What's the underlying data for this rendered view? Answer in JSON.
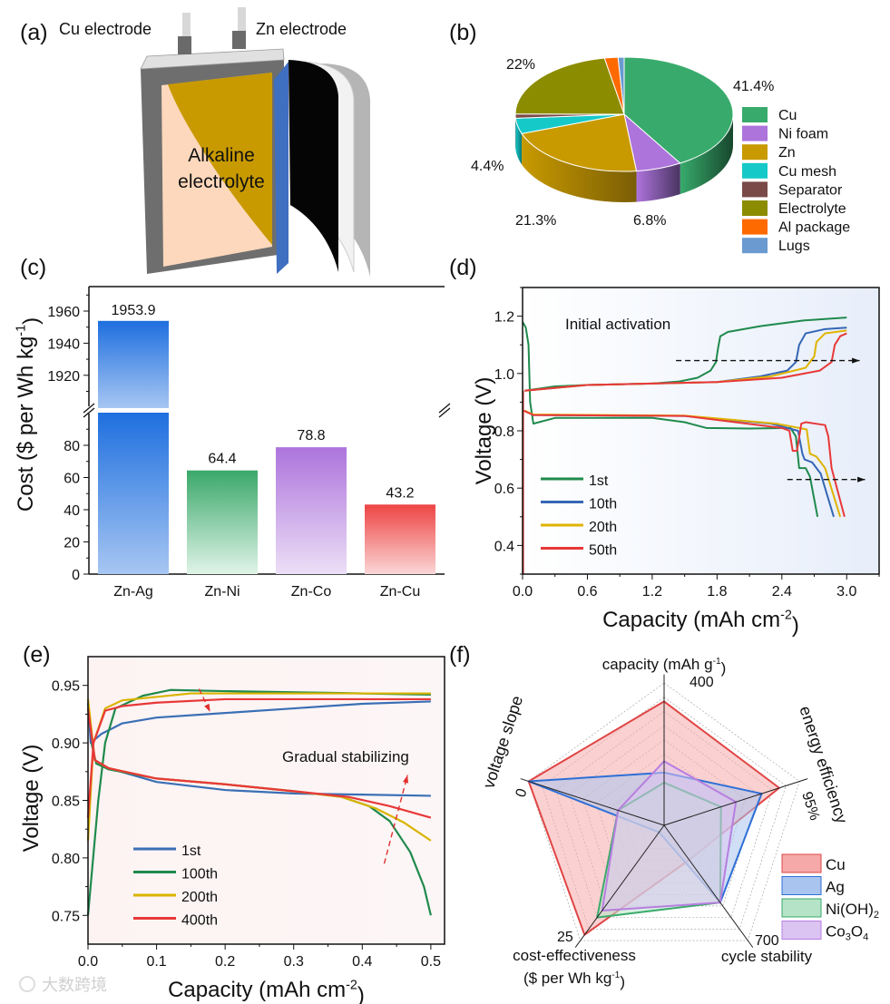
{
  "panels": {
    "a": "(a)",
    "b": "(b)",
    "c": "(c)",
    "d": "(d)",
    "e": "(e)",
    "f": "(f)"
  },
  "watermark": "大数跨境",
  "panel_a": {
    "cu_label": "Cu electrode",
    "zn_label": "Zn electrode",
    "electrolyte_line1": "Alkaline",
    "electrolyte_line2": "electrolyte",
    "colors": {
      "zn": "#c89a00",
      "cu": "#fdd8bc",
      "separator": "#3f6fc0",
      "frame": "#6a6a6a"
    }
  },
  "chart_data": [
    {
      "id": "b",
      "type": "pie",
      "slices": [
        {
          "name": "Cu",
          "value": 41.4,
          "label": "41.4%",
          "color": "#38ab6c",
          "dark": "#17472d"
        },
        {
          "name": "Ni foam",
          "value": 6.8,
          "label": "6.8%",
          "color": "#ad74dc",
          "dark": "#4a3462"
        },
        {
          "name": "Zn",
          "value": 21.3,
          "label": "21.3%",
          "color": "#c89a00",
          "dark": "#7a5e05"
        },
        {
          "name": "Cu mesh",
          "value": 4.4,
          "label": "4.4%",
          "color": "#16c9c9",
          "dark": "#0a7777"
        },
        {
          "name": "Separator",
          "value": 1.2,
          "label": "",
          "color": "#7a4a48",
          "dark": "#3f2322"
        },
        {
          "name": "Electrolyte",
          "value": 22.0,
          "label": "22%",
          "color": "#8c8c00",
          "dark": "#4f4f00"
        },
        {
          "name": "Al package",
          "value": 2.0,
          "label": "",
          "color": "#ff6a00",
          "dark": "#8a3900"
        },
        {
          "name": "Lugs",
          "value": 0.9,
          "label": "",
          "color": "#6a9ad0",
          "dark": "#3a5a80"
        }
      ],
      "legend_position": "right"
    },
    {
      "id": "c",
      "type": "bar",
      "categories": [
        "Zn-Ag",
        "Zn-Ni",
        "Zn-Co",
        "Zn-Cu"
      ],
      "values": [
        1953.9,
        64.4,
        78.8,
        43.2
      ],
      "value_labels": [
        "1953.9",
        "64.4",
        "78.8",
        "43.2"
      ],
      "colors": [
        [
          "#1e6fdf",
          "#a7c6f2"
        ],
        [
          "#3aa86a",
          "#e0f4e8"
        ],
        [
          "#ad74dc",
          "#ecdff6"
        ],
        [
          "#ee4444",
          "#fbd6d6"
        ]
      ],
      "ylabel": "Cost ($ per Wh kg",
      "ylabel_sup": "-1",
      "ylabel_tail": ")",
      "ylim_lower": [
        0,
        100
      ],
      "ylim_upper": [
        1900,
        1970
      ],
      "yticks_lower": [
        "0",
        "20",
        "40",
        "60",
        "80"
      ],
      "yticks_upper": [
        "1920",
        "1940",
        "1960"
      ],
      "axis_break": true
    },
    {
      "id": "d",
      "type": "line",
      "xlabel": "Capacity (mAh cm",
      "xlabel_sup": "-2",
      "xlabel_tail": ")",
      "ylabel": "Voltage (V)",
      "xlim": [
        0,
        3.3
      ],
      "ylim": [
        0.3,
        1.3
      ],
      "xticks": [
        "0.0",
        "0.6",
        "1.2",
        "1.8",
        "2.4",
        "3.0"
      ],
      "yticks": [
        "0.4",
        "0.6",
        "0.8",
        "1.0",
        "1.2"
      ],
      "annotation": "Initial activation",
      "series": [
        {
          "name": "1st",
          "color": "#1f8a4c",
          "charge": [
            [
              0.02,
              0.94
            ],
            [
              0.3,
              0.955
            ],
            [
              0.6,
              0.96
            ],
            [
              1.2,
              0.965
            ],
            [
              1.45,
              0.972
            ],
            [
              1.62,
              0.985
            ],
            [
              1.74,
              1.01
            ],
            [
              1.79,
              1.04
            ],
            [
              1.81,
              1.09
            ],
            [
              1.83,
              1.13
            ],
            [
              1.9,
              1.145
            ],
            [
              2.2,
              1.165
            ],
            [
              2.6,
              1.185
            ],
            [
              3.0,
              1.195
            ]
          ],
          "discharge": [
            [
              0.0,
              1.18
            ],
            [
              0.03,
              1.16
            ],
            [
              0.055,
              1.1
            ],
            [
              0.07,
              0.9
            ],
            [
              0.1,
              0.825
            ],
            [
              0.3,
              0.845
            ],
            [
              1.2,
              0.845
            ],
            [
              1.5,
              0.83
            ],
            [
              1.7,
              0.81
            ],
            [
              2.1,
              0.808
            ],
            [
              2.48,
              0.81
            ],
            [
              2.53,
              0.78
            ],
            [
              2.56,
              0.67
            ],
            [
              2.62,
              0.67
            ],
            [
              2.66,
              0.64
            ],
            [
              2.73,
              0.5
            ]
          ]
        },
        {
          "name": "10th",
          "color": "#3566b5",
          "charge": [
            [
              0.02,
              0.94
            ],
            [
              0.6,
              0.96
            ],
            [
              1.8,
              0.97
            ],
            [
              2.2,
              0.99
            ],
            [
              2.45,
              1.01
            ],
            [
              2.53,
              1.04
            ],
            [
              2.56,
              1.1
            ],
            [
              2.62,
              1.14
            ],
            [
              2.8,
              1.155
            ],
            [
              3.0,
              1.16
            ]
          ],
          "discharge": [
            [
              0.02,
              0.87
            ],
            [
              0.1,
              0.855
            ],
            [
              1.5,
              0.852
            ],
            [
              2.3,
              0.825
            ],
            [
              2.55,
              0.8
            ],
            [
              2.59,
              0.72
            ],
            [
              2.61,
              0.7
            ],
            [
              2.68,
              0.69
            ],
            [
              2.76,
              0.65
            ],
            [
              2.88,
              0.5
            ]
          ]
        },
        {
          "name": "20th",
          "color": "#e0b300",
          "charge": [
            [
              0.02,
              0.94
            ],
            [
              0.6,
              0.96
            ],
            [
              1.8,
              0.97
            ],
            [
              2.3,
              0.99
            ],
            [
              2.62,
              1.02
            ],
            [
              2.7,
              1.06
            ],
            [
              2.72,
              1.11
            ],
            [
              2.8,
              1.14
            ],
            [
              3.0,
              1.15
            ]
          ],
          "discharge": [
            [
              0.02,
              0.87
            ],
            [
              0.1,
              0.857
            ],
            [
              1.5,
              0.853
            ],
            [
              2.35,
              0.825
            ],
            [
              2.63,
              0.805
            ],
            [
              2.66,
              0.72
            ],
            [
              2.72,
              0.71
            ],
            [
              2.8,
              0.67
            ],
            [
              2.94,
              0.5
            ]
          ]
        },
        {
          "name": "50th",
          "color": "#e83838",
          "charge": [
            [
              0.02,
              0.94
            ],
            [
              0.6,
              0.96
            ],
            [
              1.8,
              0.97
            ],
            [
              2.4,
              0.985
            ],
            [
              2.75,
              1.01
            ],
            [
              2.86,
              1.04
            ],
            [
              2.89,
              1.1
            ],
            [
              2.94,
              1.13
            ],
            [
              3.0,
              1.14
            ]
          ],
          "discharge": [
            [
              0.01,
              0.87
            ],
            [
              0.1,
              0.855
            ],
            [
              1.5,
              0.852
            ],
            [
              2.4,
              0.81
            ],
            [
              2.47,
              0.8
            ],
            [
              2.5,
              0.73
            ],
            [
              2.54,
              0.73
            ],
            [
              2.58,
              0.825
            ],
            [
              2.62,
              0.83
            ],
            [
              2.8,
              0.82
            ],
            [
              2.83,
              0.78
            ],
            [
              2.86,
              0.67
            ],
            [
              2.98,
              0.5
            ]
          ]
        }
      ]
    },
    {
      "id": "e",
      "type": "line",
      "xlabel": "Capacity (mAh cm",
      "xlabel_sup": "-2",
      "xlabel_tail": ")",
      "ylabel": "Voltage (V)",
      "xlim": [
        0,
        0.52
      ],
      "ylim": [
        0.725,
        0.975
      ],
      "xticks": [
        "0.0",
        "0.1",
        "0.2",
        "0.3",
        "0.4",
        "0.5"
      ],
      "yticks": [
        "0.75",
        "0.80",
        "0.85",
        "0.90",
        "0.95"
      ],
      "annotation": "Gradual stabilizing",
      "series": [
        {
          "name": "1st",
          "color": "#3a6fb5",
          "charge": [
            [
              0,
              0.935
            ],
            [
              0.004,
              0.9
            ],
            [
              0.02,
              0.908
            ],
            [
              0.05,
              0.917
            ],
            [
              0.1,
              0.922
            ],
            [
              0.2,
              0.926
            ],
            [
              0.3,
              0.93
            ],
            [
              0.4,
              0.934
            ],
            [
              0.5,
              0.936
            ]
          ],
          "discharge": [
            [
              0,
              0.935
            ],
            [
              0.01,
              0.885
            ],
            [
              0.03,
              0.878
            ],
            [
              0.1,
              0.866
            ],
            [
              0.2,
              0.859
            ],
            [
              0.3,
              0.856
            ],
            [
              0.4,
              0.855
            ],
            [
              0.5,
              0.854
            ]
          ]
        },
        {
          "name": "100th",
          "color": "#1f8a4c",
          "charge": [
            [
              0,
              0.75
            ],
            [
              0.015,
              0.85
            ],
            [
              0.025,
              0.9
            ],
            [
              0.04,
              0.93
            ],
            [
              0.08,
              0.941
            ],
            [
              0.12,
              0.946
            ],
            [
              0.2,
              0.945
            ],
            [
              0.5,
              0.942
            ]
          ],
          "discharge": [
            [
              0.005,
              0.9
            ],
            [
              0.012,
              0.882
            ],
            [
              0.03,
              0.877
            ],
            [
              0.1,
              0.869
            ],
            [
              0.2,
              0.864
            ],
            [
              0.3,
              0.858
            ],
            [
              0.37,
              0.853
            ],
            [
              0.41,
              0.845
            ],
            [
              0.44,
              0.832
            ],
            [
              0.47,
              0.805
            ],
            [
              0.49,
              0.775
            ],
            [
              0.5,
              0.75
            ]
          ]
        },
        {
          "name": "200th",
          "color": "#d9b400",
          "charge": [
            [
              0,
              0.815
            ],
            [
              0.008,
              0.9
            ],
            [
              0.025,
              0.93
            ],
            [
              0.05,
              0.937
            ],
            [
              0.15,
              0.943
            ],
            [
              0.5,
              0.943
            ]
          ],
          "discharge": [
            [
              0,
              0.938
            ],
            [
              0.01,
              0.885
            ],
            [
              0.03,
              0.878
            ],
            [
              0.1,
              0.869
            ],
            [
              0.2,
              0.864
            ],
            [
              0.3,
              0.858
            ],
            [
              0.37,
              0.853
            ],
            [
              0.42,
              0.843
            ],
            [
              0.46,
              0.831
            ],
            [
              0.5,
              0.815
            ]
          ]
        },
        {
          "name": "400th",
          "color": "#e83838",
          "charge": [
            [
              0,
              0.835
            ],
            [
              0.008,
              0.9
            ],
            [
              0.025,
              0.928
            ],
            [
              0.05,
              0.932
            ],
            [
              0.1,
              0.935
            ],
            [
              0.2,
              0.938
            ],
            [
              0.5,
              0.938
            ]
          ],
          "discharge": [
            [
              0,
              0.93
            ],
            [
              0.01,
              0.885
            ],
            [
              0.03,
              0.878
            ],
            [
              0.1,
              0.869
            ],
            [
              0.2,
              0.864
            ],
            [
              0.3,
              0.858
            ],
            [
              0.38,
              0.853
            ],
            [
              0.44,
              0.845
            ],
            [
              0.5,
              0.835
            ]
          ]
        }
      ]
    },
    {
      "id": "f",
      "type": "radar",
      "axes": [
        {
          "label": "capacity (mAh g",
          "sup": "-1",
          "tail": ")",
          "max_label": "400"
        },
        {
          "label": "energy efficiency",
          "max_label": "95%"
        },
        {
          "label": "cycle stability",
          "max_label": "700"
        },
        {
          "label": "cost-effectiveness",
          "label2": "($ per Wh kg",
          "sup": "-1",
          "tail": ")",
          "max_label": "25"
        },
        {
          "label": "voltage slope",
          "max_label": "0"
        }
      ],
      "grid_levels": 10,
      "series": [
        {
          "name": "Cu",
          "color": "#e04545",
          "fill": "#f5a9a9",
          "values": [
            0.87,
            0.85,
            0.3,
            0.95,
            1.0
          ]
        },
        {
          "name": "Ag",
          "color": "#2e6fd6",
          "fill": "#a9c4ef",
          "values": [
            0.37,
            0.72,
            0.67,
            0.06,
            1.0
          ]
        },
        {
          "name": "Ni(OH)",
          "sub": "2",
          "color": "#3aaa6a",
          "fill": "#b5e3c8",
          "values": [
            0.3,
            0.42,
            0.67,
            0.8,
            0.34
          ]
        },
        {
          "name": "Co",
          "sub": "3",
          "mid": "O",
          "sub2": "4",
          "color": "#b77ee0",
          "fill": "#dcc4f2",
          "values": [
            0.45,
            0.53,
            0.67,
            0.74,
            0.34
          ]
        }
      ],
      "legend_position": "bottom-right"
    }
  ]
}
